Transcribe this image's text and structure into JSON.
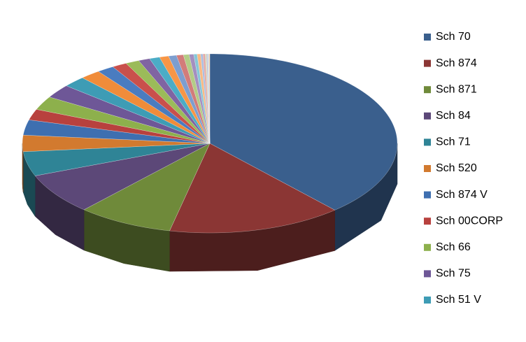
{
  "chart_data": {
    "type": "pie3d",
    "categories": [
      "Sch 70",
      "Sch 874",
      "Sch 871",
      "Sch 84",
      "Sch 71",
      "Sch 520",
      "Sch 874 V",
      "Sch 00CORP",
      "Sch 66",
      "Sch 75",
      "Sch 51 V",
      null,
      null,
      null,
      null,
      null,
      null,
      null,
      null,
      null,
      null,
      null,
      null,
      null,
      null,
      null,
      null,
      null,
      null,
      null
    ],
    "values": [
      39,
      15.3,
      8.4,
      7.5,
      4.5,
      3,
      2.8,
      2,
      2.5,
      2.5,
      2,
      1.8,
      1.5,
      1.3,
      1.2,
      1,
      0.9,
      0.8,
      0.7,
      0.6,
      0.5,
      0.4,
      0.3,
      0.3,
      0.2,
      0.2,
      0.1,
      0.1,
      0.1,
      0.1
    ],
    "colors": [
      "#3a5f8d",
      "#8b3634",
      "#6f8a3a",
      "#5c4878",
      "#2f8496",
      "#d27a2f",
      "#3e6fb0",
      "#b8413e",
      "#8db04c",
      "#6e5797",
      "#3e9cb5",
      "#f08c3a",
      "#4a7cc0",
      "#c9504c",
      "#9bbb59",
      "#8064a2",
      "#4bacc6",
      "#f79646",
      "#7d9ecf",
      "#d27c7a",
      "#b3cc86",
      "#a48fc0",
      "#86c7d8",
      "#f9b983",
      "#a9bde0",
      "#e3a8a6",
      "#cddcaf",
      "#c4b7d8",
      "#b4dbe6",
      "#fbd1b1"
    ],
    "legend": "right"
  }
}
